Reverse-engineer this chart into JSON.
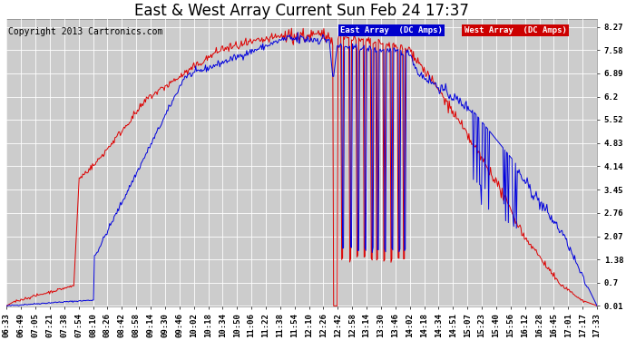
{
  "title": "East & West Array Current Sun Feb 24 17:37",
  "copyright": "Copyright 2013 Cartronics.com",
  "bg_color": "#ffffff",
  "plot_bg_color": "#cccccc",
  "grid_color": "#ffffff",
  "east_color": "#0000dd",
  "west_color": "#dd0000",
  "legend_east_label": "East Array  (DC Amps)",
  "legend_west_label": "West Array  (DC Amps)",
  "legend_east_bg": "#0000cc",
  "legend_west_bg": "#cc0000",
  "yticks": [
    0.01,
    0.7,
    1.38,
    2.07,
    2.76,
    3.45,
    4.14,
    4.83,
    5.52,
    6.2,
    6.89,
    7.58,
    8.27
  ],
  "ymin": 0.0,
  "ymax": 8.5,
  "tick_fontsize": 6.5,
  "title_fontsize": 12,
  "copyright_fontsize": 7,
  "x_tick_labels": [
    "06:33",
    "06:49",
    "07:05",
    "07:21",
    "07:38",
    "07:54",
    "08:10",
    "08:26",
    "08:42",
    "08:58",
    "09:14",
    "09:30",
    "09:46",
    "10:02",
    "10:18",
    "10:34",
    "10:50",
    "11:06",
    "11:22",
    "11:38",
    "11:54",
    "12:10",
    "12:26",
    "12:42",
    "12:58",
    "13:14",
    "13:30",
    "13:46",
    "14:02",
    "14:18",
    "14:34",
    "14:51",
    "15:07",
    "15:23",
    "15:40",
    "15:56",
    "16:12",
    "16:28",
    "16:45",
    "17:01",
    "17:17",
    "17:33"
  ]
}
